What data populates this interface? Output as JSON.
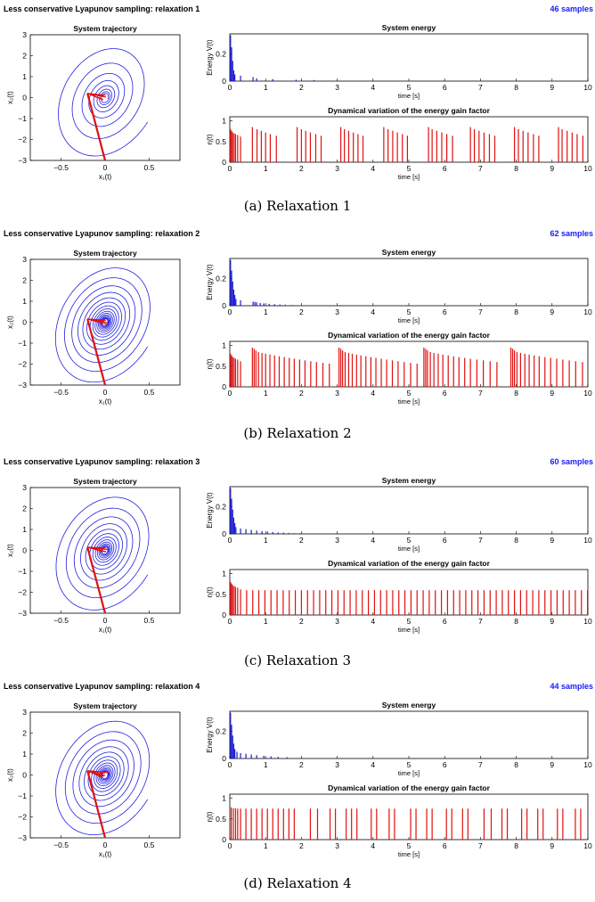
{
  "colors": {
    "trajectory": "#2020e0",
    "energy": "#1a1ad6",
    "eta": "#e01010",
    "samples_text": "#1a1aff"
  },
  "panels": [
    {
      "fig_title": "Less conservative Lyapunov sampling: relaxation 1",
      "samples": "46 samples",
      "caption": "(a)  Relaxation 1",
      "chart_data": [
        {
          "type": "line",
          "title": "System trajectory",
          "xlabel": "x₁(t)",
          "ylabel": "x₂(t)",
          "xlim": [
            -0.85,
            0.85
          ],
          "ylim": [
            -3,
            3
          ],
          "xticks": [
            "−0.5",
            "0",
            "0.5"
          ],
          "yticks": [
            "−3",
            "−2",
            "−1",
            "0",
            "1",
            "2",
            "3"
          ],
          "spiral": {
            "turns": 8,
            "start_radius_scale": 1.0,
            "end_radius_scale": 0.06
          },
          "red_segment": {
            "from": [
              0,
              -3.0
            ],
            "to": [
              -0.2,
              0.2
            ]
          }
        },
        {
          "type": "bar",
          "title": "System energy",
          "xlabel": "time [s]",
          "ylabel": "Energy V(t)",
          "xlim": [
            0,
            10
          ],
          "ylim": [
            0,
            0.35
          ],
          "yticks": [
            "0",
            "0.2"
          ],
          "t": [
            0.02,
            0.05,
            0.08,
            0.11,
            0.14,
            0.3,
            0.65,
            0.75,
            1.2,
            1.85,
            2.35
          ],
          "values": [
            0.34,
            0.25,
            0.15,
            0.08,
            0.05,
            0.04,
            0.03,
            0.02,
            0.015,
            0.01,
            0.008
          ]
        },
        {
          "type": "bar",
          "title": "Dynamical variation of the energy gain factor",
          "xlabel": "time [s]",
          "ylabel": "η(t)",
          "xlim": [
            0,
            10
          ],
          "ylim": [
            0,
            1.1
          ],
          "yticks": [
            "0",
            "0.5",
            "1"
          ],
          "t": [
            0.02,
            0.05,
            0.08,
            0.12,
            0.16,
            0.22,
            0.3,
            0.63,
            0.76,
            0.88,
            1.0,
            1.13,
            1.3,
            1.88,
            2.0,
            2.12,
            2.25,
            2.4,
            2.55,
            3.1,
            3.2,
            3.32,
            3.45,
            3.58,
            3.72,
            4.3,
            4.42,
            4.55,
            4.68,
            4.82,
            4.96,
            5.55,
            5.65,
            5.78,
            5.92,
            6.06,
            6.22,
            6.72,
            6.83,
            6.96,
            7.1,
            7.25,
            7.4,
            7.95,
            8.06,
            8.19,
            8.33,
            8.48,
            8.63,
            9.18,
            9.28,
            9.42,
            9.56,
            9.7,
            9.86
          ],
          "values": [
            0.8,
            0.76,
            0.72,
            0.7,
            0.68,
            0.66,
            0.62,
            0.85,
            0.8,
            0.76,
            0.72,
            0.68,
            0.64,
            0.85,
            0.8,
            0.76,
            0.72,
            0.68,
            0.64,
            0.85,
            0.8,
            0.76,
            0.72,
            0.68,
            0.64,
            0.85,
            0.8,
            0.76,
            0.72,
            0.68,
            0.64,
            0.85,
            0.8,
            0.76,
            0.72,
            0.68,
            0.64,
            0.85,
            0.8,
            0.76,
            0.72,
            0.68,
            0.64,
            0.85,
            0.8,
            0.76,
            0.72,
            0.68,
            0.64,
            0.85,
            0.8,
            0.76,
            0.72,
            0.68,
            0.64
          ]
        }
      ]
    },
    {
      "fig_title": "Less conservative Lyapunov sampling: relaxation 2",
      "samples": "62 samples",
      "caption": "(b)  Relaxation 2",
      "chart_data": [
        {
          "type": "line",
          "title": "System trajectory",
          "xlabel": "x₁(t)",
          "ylabel": "x₂(t)",
          "xlim": [
            -0.85,
            0.85
          ],
          "ylim": [
            -3,
            3
          ],
          "xticks": [
            "−0.5",
            "0",
            "0.5"
          ],
          "yticks": [
            "−3",
            "−2",
            "−1",
            "0",
            "1",
            "2",
            "3"
          ],
          "spiral": {
            "turns": 15,
            "start_radius_scale": 1.0,
            "end_radius_scale": 0.05
          },
          "red_segment": {
            "from": [
              0,
              -3.0
            ],
            "to": [
              -0.2,
              0.15
            ]
          }
        },
        {
          "type": "bar",
          "title": "System energy",
          "xlabel": "time [s]",
          "ylabel": "Energy V(t)",
          "xlim": [
            0,
            10
          ],
          "ylim": [
            0,
            0.35
          ],
          "yticks": [
            "0",
            "0.2"
          ],
          "t": [
            0.02,
            0.05,
            0.08,
            0.11,
            0.14,
            0.17,
            0.3,
            0.65,
            0.7,
            0.75,
            0.85,
            0.95,
            1.1,
            1.25,
            1.4,
            1.55,
            1.75
          ],
          "values": [
            0.34,
            0.26,
            0.18,
            0.12,
            0.08,
            0.05,
            0.04,
            0.03,
            0.028,
            0.025,
            0.02,
            0.017,
            0.014,
            0.011,
            0.009,
            0.007,
            0.005
          ]
        },
        {
          "type": "bar",
          "title": "Dynamical variation of the energy gain factor",
          "xlabel": "time [s]",
          "ylabel": "η(t)",
          "xlim": [
            0,
            10
          ],
          "ylim": [
            0,
            1.1
          ],
          "yticks": [
            "0",
            "0.5",
            "1"
          ],
          "t": [
            0.02,
            0.05,
            0.08,
            0.12,
            0.16,
            0.22,
            0.3,
            0.63,
            0.68,
            0.73,
            0.8,
            0.9,
            1.0,
            1.12,
            1.25,
            1.38,
            1.52,
            1.66,
            1.8,
            1.95,
            2.1,
            2.26,
            2.42,
            2.6,
            2.78,
            3.05,
            3.1,
            3.15,
            3.22,
            3.32,
            3.42,
            3.54,
            3.66,
            3.8,
            3.94,
            4.08,
            4.23,
            4.38,
            4.54,
            4.7,
            4.87,
            5.05,
            5.23,
            5.42,
            5.47,
            5.52,
            5.6,
            5.7,
            5.82,
            5.95,
            6.1,
            6.25,
            6.4,
            6.56,
            6.72,
            6.9,
            7.08,
            7.27,
            7.46,
            7.85,
            7.9,
            7.95,
            8.02,
            8.12,
            8.24,
            8.36,
            8.5,
            8.64,
            8.8,
            8.96,
            9.13,
            9.3,
            9.48,
            9.66,
            9.85
          ],
          "values": [
            0.8,
            0.76,
            0.72,
            0.7,
            0.68,
            0.66,
            0.62,
            0.95,
            0.92,
            0.88,
            0.84,
            0.82,
            0.8,
            0.78,
            0.76,
            0.74,
            0.72,
            0.7,
            0.68,
            0.66,
            0.64,
            0.62,
            0.6,
            0.58,
            0.56,
            0.95,
            0.92,
            0.88,
            0.84,
            0.82,
            0.8,
            0.78,
            0.76,
            0.74,
            0.72,
            0.7,
            0.68,
            0.66,
            0.64,
            0.62,
            0.6,
            0.58,
            0.56,
            0.95,
            0.92,
            0.88,
            0.84,
            0.82,
            0.8,
            0.78,
            0.76,
            0.74,
            0.72,
            0.7,
            0.68,
            0.66,
            0.64,
            0.62,
            0.6,
            0.95,
            0.92,
            0.88,
            0.84,
            0.82,
            0.8,
            0.78,
            0.76,
            0.74,
            0.72,
            0.7,
            0.68,
            0.66,
            0.64,
            0.62,
            0.6
          ]
        }
      ]
    },
    {
      "fig_title": "Less conservative Lyapunov sampling: relaxation 3",
      "samples": "60 samples",
      "caption": "(c)  Relaxation 3",
      "chart_data": [
        {
          "type": "line",
          "title": "System trajectory",
          "xlabel": "x₁(t)",
          "ylabel": "x₂(t)",
          "xlim": [
            -0.85,
            0.85
          ],
          "ylim": [
            -3,
            3
          ],
          "xticks": [
            "−0.5",
            "0",
            "0.5"
          ],
          "yticks": [
            "−3",
            "−2",
            "−1",
            "0",
            "1",
            "2",
            "3"
          ],
          "spiral": {
            "turns": 13,
            "start_radius_scale": 1.0,
            "end_radius_scale": 0.05
          },
          "red_segment": {
            "from": [
              0,
              -3.0
            ],
            "to": [
              -0.2,
              0.15
            ]
          }
        },
        {
          "type": "bar",
          "title": "System energy",
          "xlabel": "time [s]",
          "ylabel": "Energy V(t)",
          "xlim": [
            0,
            10
          ],
          "ylim": [
            0,
            0.35
          ],
          "yticks": [
            "0",
            "0.2"
          ],
          "t": [
            0.02,
            0.05,
            0.08,
            0.11,
            0.14,
            0.17,
            0.3,
            0.45,
            0.6,
            0.75,
            0.9,
            1.05,
            1.2,
            1.35,
            1.5,
            1.65,
            1.8,
            1.95
          ],
          "values": [
            0.34,
            0.26,
            0.18,
            0.12,
            0.08,
            0.05,
            0.04,
            0.035,
            0.03,
            0.025,
            0.02,
            0.017,
            0.014,
            0.011,
            0.009,
            0.007,
            0.005,
            0.004
          ]
        },
        {
          "type": "bar",
          "title": "Dynamical variation of the energy gain factor",
          "xlabel": "time [s]",
          "ylabel": "η(t)",
          "xlim": [
            0,
            10
          ],
          "ylim": [
            0,
            1.1
          ],
          "yticks": [
            "0",
            "0.5",
            "1"
          ],
          "t": [
            0.02,
            0.05,
            0.08,
            0.12,
            0.16,
            0.22,
            0.3,
            0.47,
            0.64,
            0.81,
            0.98,
            1.15,
            1.32,
            1.49,
            1.66,
            1.83,
            2.0,
            2.17,
            2.34,
            2.51,
            2.68,
            2.85,
            3.02,
            3.19,
            3.36,
            3.53,
            3.7,
            3.87,
            4.04,
            4.21,
            4.38,
            4.55,
            4.72,
            4.89,
            5.06,
            5.23,
            5.4,
            5.57,
            5.74,
            5.91,
            6.08,
            6.25,
            6.42,
            6.59,
            6.76,
            6.93,
            7.1,
            7.27,
            7.44,
            7.61,
            7.78,
            7.95,
            8.12,
            8.29,
            8.46,
            8.63,
            8.8,
            8.97,
            9.14,
            9.31,
            9.48,
            9.65,
            9.82,
            9.99
          ],
          "values": [
            0.8,
            0.76,
            0.72,
            0.7,
            0.68,
            0.66,
            0.62,
            0.6,
            0.6,
            0.6,
            0.6,
            0.6,
            0.6,
            0.6,
            0.6,
            0.6,
            0.6,
            0.6,
            0.6,
            0.6,
            0.6,
            0.6,
            0.6,
            0.6,
            0.6,
            0.6,
            0.6,
            0.6,
            0.6,
            0.6,
            0.6,
            0.6,
            0.6,
            0.6,
            0.6,
            0.6,
            0.6,
            0.6,
            0.6,
            0.6,
            0.6,
            0.6,
            0.6,
            0.6,
            0.6,
            0.6,
            0.6,
            0.6,
            0.6,
            0.6,
            0.6,
            0.6,
            0.6,
            0.6,
            0.6,
            0.6,
            0.6,
            0.6,
            0.6,
            0.6,
            0.6,
            0.6,
            0.6,
            0.6
          ]
        }
      ]
    },
    {
      "fig_title": "Less conservative Lyapunov sampling: relaxation 4",
      "samples": "44 samples",
      "caption": "(d)  Relaxation 4",
      "chart_data": [
        {
          "type": "line",
          "title": "System trajectory",
          "xlabel": "x₁(t)",
          "ylabel": "x₂(t)",
          "xlim": [
            -0.85,
            0.85
          ],
          "ylim": [
            -3,
            3
          ],
          "xticks": [
            "−0.5",
            "0",
            "0.5"
          ],
          "yticks": [
            "−3",
            "−2",
            "−1",
            "0",
            "1",
            "2",
            "3"
          ],
          "spiral": {
            "turns": 14,
            "start_radius_scale": 1.0,
            "end_radius_scale": 0.05
          },
          "red_segment": {
            "from": [
              0,
              -3.0
            ],
            "to": [
              -0.2,
              0.2
            ]
          }
        },
        {
          "type": "bar",
          "title": "System energy",
          "xlabel": "time [s]",
          "ylabel": "Energy V(t)",
          "xlim": [
            0,
            10
          ],
          "ylim": [
            0,
            0.35
          ],
          "yticks": [
            "0",
            "0.2"
          ],
          "t": [
            0.02,
            0.05,
            0.08,
            0.11,
            0.14,
            0.2,
            0.3,
            0.45,
            0.6,
            0.75,
            0.95,
            1.15,
            1.35,
            1.6
          ],
          "values": [
            0.34,
            0.25,
            0.17,
            0.11,
            0.07,
            0.05,
            0.04,
            0.035,
            0.03,
            0.025,
            0.02,
            0.016,
            0.012,
            0.009
          ]
        },
        {
          "type": "bar",
          "title": "Dynamical variation of the energy gain factor",
          "xlabel": "time [s]",
          "ylabel": "η(t)",
          "xlim": [
            0,
            10
          ],
          "ylim": [
            0,
            1.1
          ],
          "yticks": [
            "0",
            "0.5",
            "1"
          ],
          "t": [
            0.04,
            0.1,
            0.16,
            0.22,
            0.3,
            0.45,
            0.6,
            0.75,
            0.9,
            1.05,
            1.2,
            1.35,
            1.5,
            1.65,
            1.8,
            2.25,
            2.45,
            2.8,
            2.95,
            3.25,
            3.4,
            3.55,
            3.95,
            4.1,
            4.45,
            4.6,
            5.05,
            5.2,
            5.5,
            5.65,
            6.05,
            6.2,
            6.5,
            6.65,
            7.1,
            7.3,
            7.6,
            7.75,
            8.15,
            8.3,
            8.6,
            8.75,
            9.15,
            9.3,
            9.65,
            9.8
          ],
          "values": [
            0.78,
            0.76,
            0.76,
            0.75,
            0.75,
            0.75,
            0.75,
            0.75,
            0.75,
            0.75,
            0.75,
            0.75,
            0.75,
            0.75,
            0.75,
            0.75,
            0.75,
            0.75,
            0.75,
            0.75,
            0.75,
            0.75,
            0.75,
            0.75,
            0.75,
            0.75,
            0.75,
            0.75,
            0.75,
            0.75,
            0.75,
            0.75,
            0.75,
            0.75,
            0.75,
            0.75,
            0.75,
            0.75,
            0.75,
            0.75,
            0.75,
            0.75,
            0.75,
            0.75,
            0.75,
            0.75
          ]
        }
      ]
    }
  ]
}
